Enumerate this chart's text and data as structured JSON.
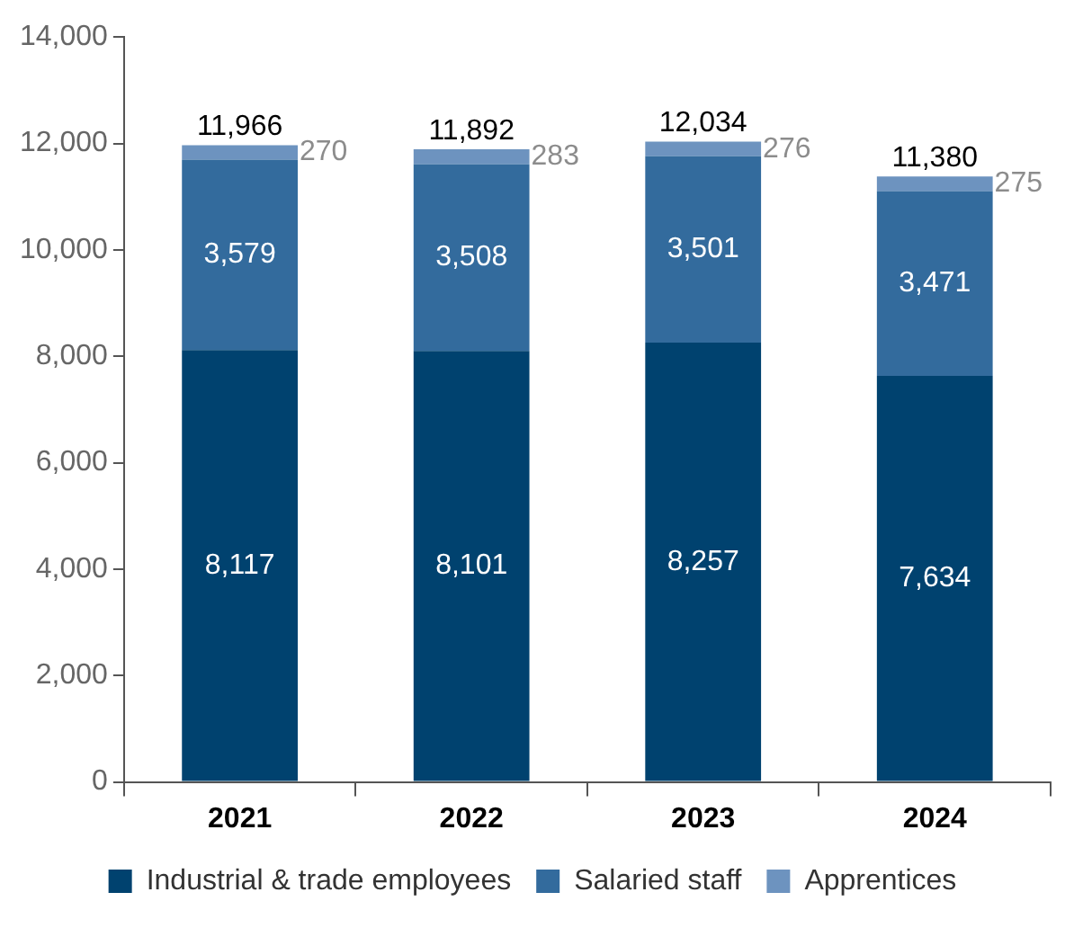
{
  "chart_data": {
    "type": "bar",
    "categories": [
      "2021",
      "2022",
      "2023",
      "2024"
    ],
    "stacked": true,
    "series": [
      {
        "name": "Industrial & trade employees",
        "color": "#00426f",
        "values": [
          8117,
          8101,
          8257,
          7634
        ],
        "value_labels": [
          "8,117",
          "8,101",
          "8,257",
          "7,634"
        ]
      },
      {
        "name": "Salaried staff",
        "color": "#336b9d",
        "values": [
          3579,
          3508,
          3501,
          3471
        ],
        "value_labels": [
          "3,579",
          "3,508",
          "3,501",
          "3,471"
        ]
      },
      {
        "name": "Apprentices",
        "color": "#6d93bf",
        "values": [
          270,
          283,
          276,
          275
        ],
        "value_labels": [
          "270",
          "283",
          "276",
          "275"
        ]
      }
    ],
    "totals": [
      "11,966",
      "11,892",
      "12,034",
      "11,380"
    ],
    "ylim": [
      0,
      14000
    ],
    "yticks": [
      {
        "value": 0,
        "label": "0"
      },
      {
        "value": 2000,
        "label": "2,000"
      },
      {
        "value": 4000,
        "label": "4,000"
      },
      {
        "value": 6000,
        "label": "6,000"
      },
      {
        "value": 8000,
        "label": "8,000"
      },
      {
        "value": 10000,
        "label": "10,000"
      },
      {
        "value": 12000,
        "label": "12,000"
      },
      {
        "value": 14000,
        "label": "14,000"
      }
    ],
    "grid": false,
    "legend": "bottom"
  }
}
